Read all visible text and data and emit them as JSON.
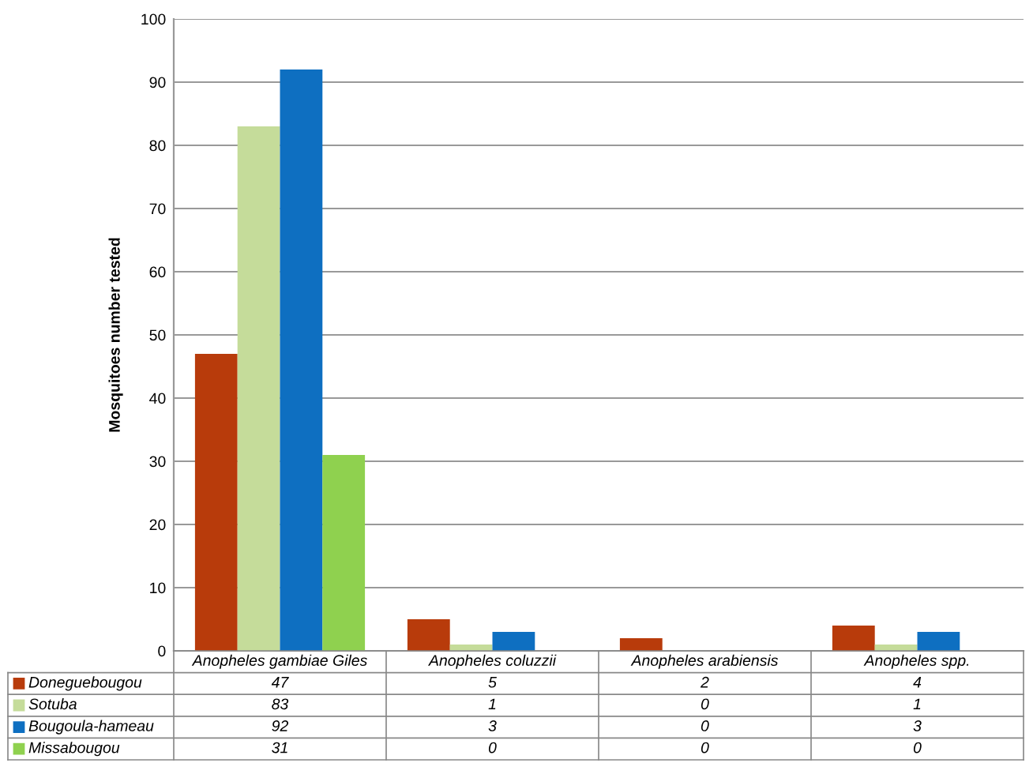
{
  "chart_data": {
    "type": "bar",
    "ylabel": "Mosquitoes number tested",
    "categories": [
      "Anopheles gambiae Giles",
      "Anopheles coluzzii",
      "Anopheles arabiensis",
      "Anopheles spp."
    ],
    "series": [
      {
        "name": "Doneguebougou",
        "color": "#b83b0b",
        "values": [
          47,
          5,
          2,
          4
        ]
      },
      {
        "name": "Sotuba",
        "color": "#c5dc9a",
        "values": [
          83,
          1,
          0,
          1
        ]
      },
      {
        "name": "Bougoula-hameau",
        "color": "#0e6fc1",
        "values": [
          92,
          3,
          0,
          3
        ]
      },
      {
        "name": "Missabougou",
        "color": "#8fd14f",
        "values": [
          31,
          0,
          0,
          0
        ]
      }
    ],
    "ylim": [
      0,
      100
    ],
    "yticks": [
      0,
      10,
      20,
      30,
      40,
      50,
      60,
      70,
      80,
      90,
      100
    ],
    "grid": "y",
    "data_labels": true,
    "legend": "bottom"
  }
}
